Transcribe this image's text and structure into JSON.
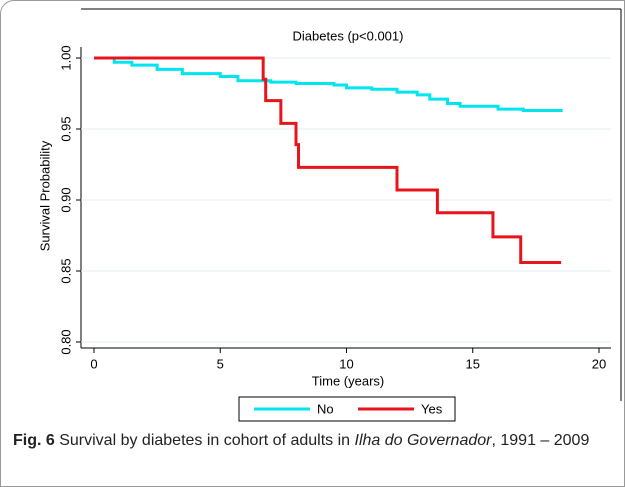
{
  "chart_data": {
    "type": "step",
    "title": "Diabetes (p<0.001)",
    "x_label": "Time (years)",
    "y_label": "Survival Probability",
    "xlim": [
      0,
      20
    ],
    "xticks": [
      0,
      5,
      10,
      15,
      20
    ],
    "ylim": [
      0.8,
      1.0
    ],
    "yticks": [
      {
        "value": 0.8,
        "label": "0.80"
      },
      {
        "value": 0.85,
        "label": "0.85"
      },
      {
        "value": 0.9,
        "label": "0.90"
      },
      {
        "value": 0.95,
        "label": "0.95"
      },
      {
        "value": 1.0,
        "label": "1.00"
      }
    ],
    "grid": true,
    "legend": "bottom",
    "series": [
      {
        "name": "No",
        "color": "#00e5ee",
        "x": [
          0,
          0.8,
          1.5,
          2.5,
          3.5,
          5.0,
          5.7,
          7.0,
          8.0,
          9.5,
          10.0,
          11.0,
          12.0,
          12.8,
          13.3,
          14.0,
          14.5,
          16.0,
          17.0,
          18.5
        ],
        "values": [
          1.0,
          0.997,
          0.995,
          0.992,
          0.989,
          0.987,
          0.984,
          0.983,
          0.982,
          0.981,
          0.979,
          0.978,
          0.976,
          0.974,
          0.971,
          0.968,
          0.966,
          0.964,
          0.963,
          0.962
        ]
      },
      {
        "name": "Yes",
        "color": "#e8141c",
        "x": [
          0,
          6.7,
          6.8,
          7.4,
          8.0,
          8.1,
          12.0,
          13.6,
          15.8,
          16.9,
          18.5
        ],
        "values": [
          1.0,
          0.985,
          0.97,
          0.954,
          0.939,
          0.923,
          0.907,
          0.891,
          0.874,
          0.856,
          0.856
        ]
      }
    ]
  },
  "caption": {
    "label": "Fig. 6",
    "before": " Survival by diabetes in cohort of adults in ",
    "place": "Ilha do Governador",
    "after": ", 1991 – 2009"
  }
}
